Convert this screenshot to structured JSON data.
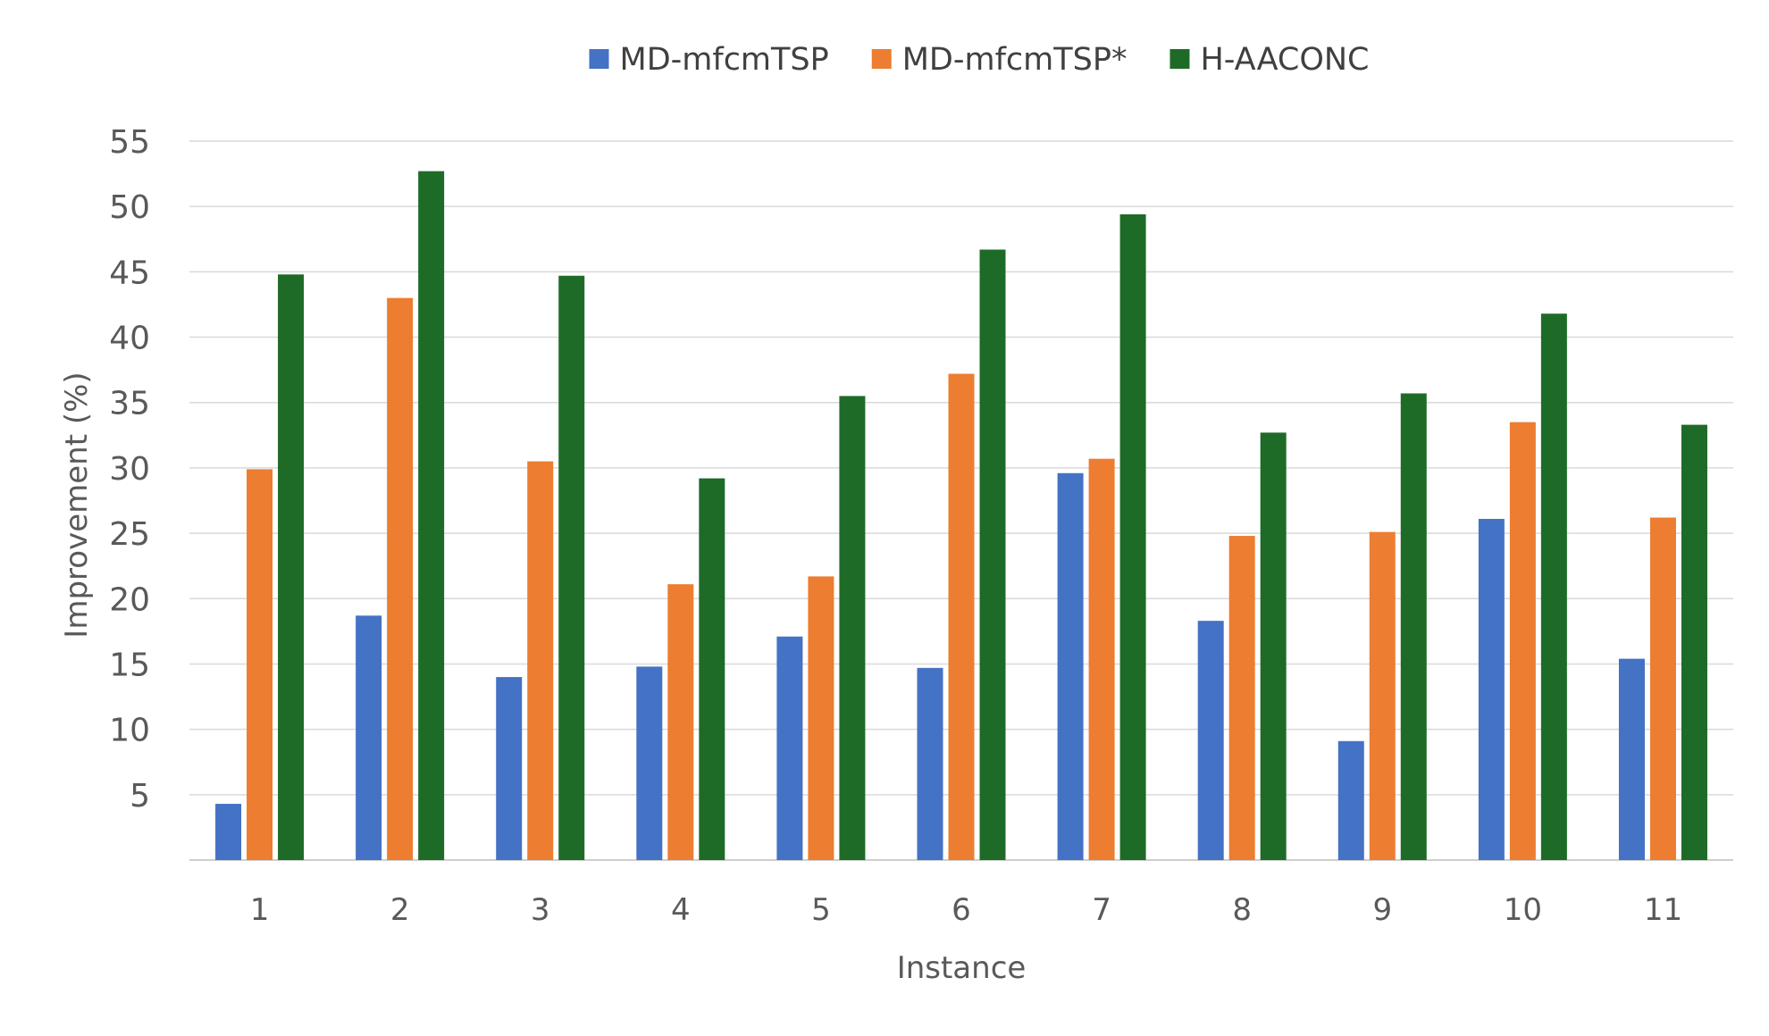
{
  "chart_data": {
    "type": "bar",
    "title": "",
    "xlabel": "Instance",
    "ylabel": "Improvement (%)",
    "ylim": [
      0,
      55
    ],
    "yticks": [
      5,
      10,
      15,
      20,
      25,
      30,
      35,
      40,
      45,
      50,
      55
    ],
    "grid": true,
    "legend_position": "top-center",
    "categories": [
      "1",
      "2",
      "3",
      "4",
      "5",
      "6",
      "7",
      "8",
      "9",
      "10",
      "11"
    ],
    "series": [
      {
        "name": "MD-mfcmTSP",
        "color": "#4472c4",
        "values": [
          4.3,
          18.7,
          14.0,
          14.8,
          17.1,
          14.7,
          29.6,
          18.3,
          9.1,
          26.1,
          15.4
        ]
      },
      {
        "name": "MD-mfcmTSP*",
        "color": "#ed7d31",
        "values": [
          29.9,
          43.0,
          30.5,
          21.1,
          21.7,
          37.2,
          30.7,
          24.8,
          25.1,
          33.5,
          26.2
        ]
      },
      {
        "name": "H-AACONC",
        "color": "#1e6b27",
        "values": [
          44.8,
          52.7,
          44.7,
          29.2,
          35.5,
          46.7,
          49.4,
          32.7,
          35.7,
          41.8,
          33.3
        ]
      }
    ]
  }
}
